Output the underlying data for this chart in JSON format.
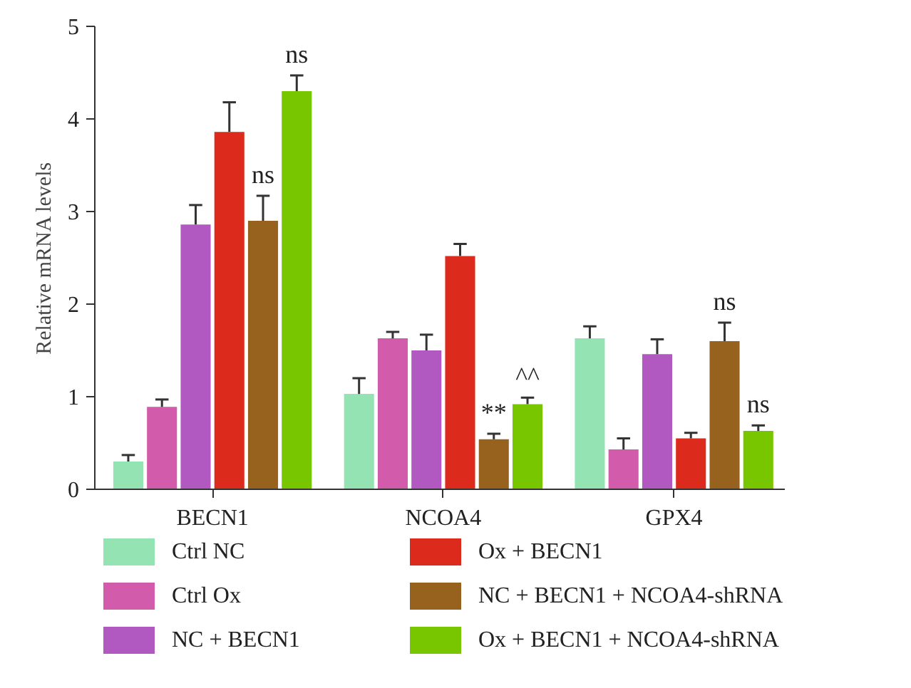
{
  "chart_data": {
    "type": "bar",
    "ylabel": "Relative mRNA levels",
    "categories": [
      "BECN1",
      "NCOA4",
      "GPX4"
    ],
    "ylim": [
      0,
      5
    ],
    "yticks": [
      0,
      1,
      2,
      3,
      4,
      5
    ],
    "grid": false,
    "legend": "bottom",
    "series": [
      {
        "name": "Ctrl NC",
        "color": "#94e3b3",
        "values": [
          0.3,
          1.03,
          1.63
        ],
        "errors": [
          [
            0.3,
            0.37
          ],
          [
            1.03,
            1.2
          ],
          [
            1.63,
            1.76
          ]
        ]
      },
      {
        "name": "Ctrl Ox",
        "color": "#d35bab",
        "values": [
          0.89,
          1.63,
          0.43
        ],
        "errors": [
          [
            0.89,
            0.97
          ],
          [
            1.63,
            1.7
          ],
          [
            0.43,
            0.55
          ]
        ]
      },
      {
        "name": "NC + BECN1",
        "color": "#b159c1",
        "values": [
          2.86,
          1.5,
          1.46
        ],
        "errors": [
          [
            2.86,
            3.07
          ],
          [
            1.5,
            1.67
          ],
          [
            1.46,
            1.62
          ]
        ]
      },
      {
        "name": "Ox + BECN1",
        "color": "#dc2b1c",
        "values": [
          3.86,
          2.52,
          0.55
        ],
        "errors": [
          [
            3.86,
            4.18
          ],
          [
            2.52,
            2.65
          ],
          [
            0.55,
            0.61
          ]
        ]
      },
      {
        "name": "NC + BECN1 + NCOA4-shRNA",
        "color": "#97621e",
        "values": [
          2.9,
          0.54,
          1.6
        ],
        "errors": [
          [
            2.9,
            3.17
          ],
          [
            0.54,
            0.6
          ],
          [
            1.6,
            1.8
          ]
        ],
        "value_labels": [
          "ns",
          "**",
          "ns"
        ]
      },
      {
        "name": "Ox + BECN1 + NCOA4-shRNA",
        "color": "#77c600",
        "values": [
          4.3,
          0.92,
          0.63
        ],
        "errors": [
          [
            4.3,
            4.47
          ],
          [
            0.92,
            0.99
          ],
          [
            0.63,
            0.69
          ]
        ],
        "value_labels": [
          "ns",
          "^^",
          "ns"
        ]
      }
    ]
  }
}
